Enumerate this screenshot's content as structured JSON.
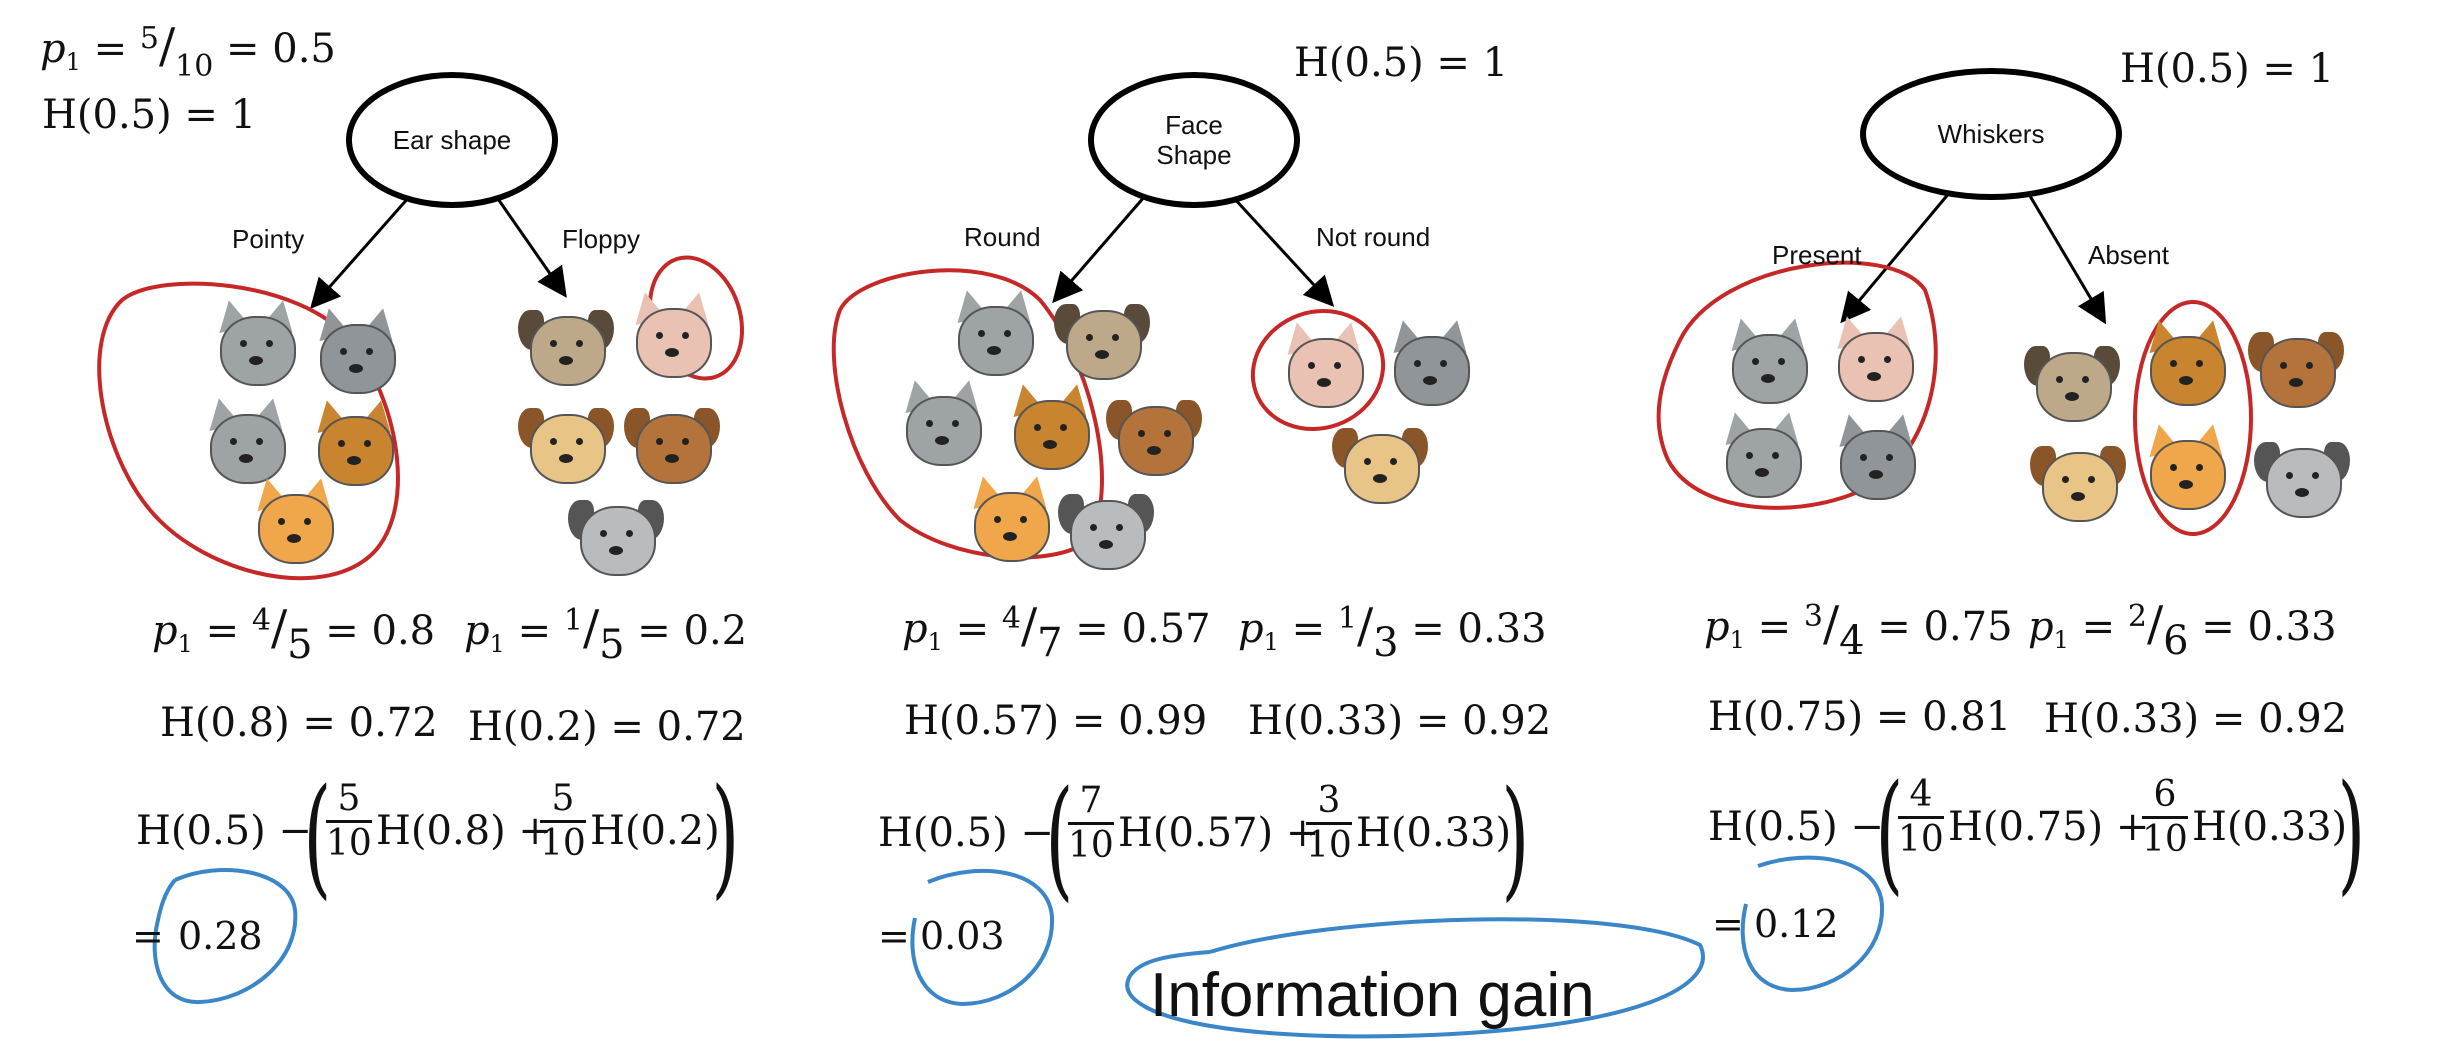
{
  "top": {
    "p1_sym": "p",
    "p1_sub": "1",
    "p1_num": "5",
    "p1_den": "10",
    "p1_val": "= 0.5",
    "root_h": "H(0.5) = 1"
  },
  "trees": [
    {
      "node_label": "Ear shape",
      "root_h": "",
      "left_branch": "Pointy",
      "right_branch": "Floppy",
      "left_p_num": "4",
      "left_p_den": "5",
      "left_p_val": "= 0.8",
      "right_p_num": "1",
      "right_p_den": "5",
      "right_p_val": "= 0.2",
      "left_h": "H(0.8) = 0.72",
      "right_h": "H(0.2) = 0.72",
      "formula_lead": "H(0.5) −",
      "w1_num": "5",
      "w1_den": "10",
      "term1": "H(0.8) +",
      "w2_num": "5",
      "w2_den": "10",
      "term2": "H(0.2)",
      "result": "0.28"
    },
    {
      "node_label": "Face Shape",
      "root_h": "H(0.5) = 1",
      "left_branch": "Round",
      "right_branch": "Not round",
      "left_p_num": "4",
      "left_p_den": "7",
      "left_p_val": "= 0.57",
      "right_p_num": "1",
      "right_p_den": "3",
      "right_p_val": "= 0.33",
      "left_h": "H(0.57) = 0.99",
      "right_h": "H(0.33) = 0.92",
      "formula_lead": "H(0.5) −",
      "w1_num": "7",
      "w1_den": "10",
      "term1": "H(0.57) +",
      "w2_num": "3",
      "w2_den": "10",
      "term2": "H(0.33)",
      "result": "0.03"
    },
    {
      "node_label": "Whiskers",
      "root_h": "H(0.5) = 1",
      "left_branch": "Present",
      "right_branch": "Absent",
      "left_p_num": "3",
      "left_p_den": "4",
      "left_p_val": "= 0.75",
      "right_p_num": "2",
      "right_p_den": "6",
      "right_p_val": "= 0.33",
      "left_h": "H(0.75) = 0.81",
      "right_h": "H(0.33) = 0.92",
      "formula_lead": "H(0.5) −",
      "w1_num": "4",
      "w1_den": "10",
      "term1": "H(0.75) +",
      "w2_num": "6",
      "w2_den": "10",
      "term2": "H(0.33)",
      "result": "0.12"
    }
  ],
  "equals": "=",
  "info_gain_label": "Information gain",
  "colors": {
    "red_annotation": "#c62828",
    "blue_annotation": "#3a86c8",
    "cat_gray": "#9ea3a6",
    "cat_orange": "#c8842e",
    "dog_tan": "#e8c486",
    "dog_brown": "#b5733c",
    "dog_pug": "#bda98a"
  },
  "animal_groups": [
    {
      "group": "ear-pointy",
      "animals": [
        "cat-gray",
        "cat-gray-alt",
        "cat-gray",
        "cat-orange",
        "cat-orange-white"
      ]
    },
    {
      "group": "ear-floppy",
      "animals": [
        "dog-pug",
        "cat-floppy-pink",
        "dog-tan",
        "dog-brown",
        "dog-gray"
      ]
    },
    {
      "group": "face-round",
      "animals": [
        "cat-gray",
        "dog-pug",
        "cat-gray",
        "cat-orange",
        "dog-brown",
        "cat-orange-white",
        "dog-gray"
      ]
    },
    {
      "group": "face-not-round",
      "animals": [
        "cat-floppy-pink",
        "cat-gray-alt",
        "dog-tan"
      ]
    },
    {
      "group": "whiskers-present",
      "animals": [
        "cat-gray",
        "cat-floppy-pink",
        "cat-gray",
        "cat-gray-alt"
      ]
    },
    {
      "group": "whiskers-absent",
      "animals": [
        "dog-pug",
        "cat-orange",
        "dog-brown",
        "dog-tan",
        "cat-orange-white",
        "dog-gray"
      ]
    }
  ]
}
